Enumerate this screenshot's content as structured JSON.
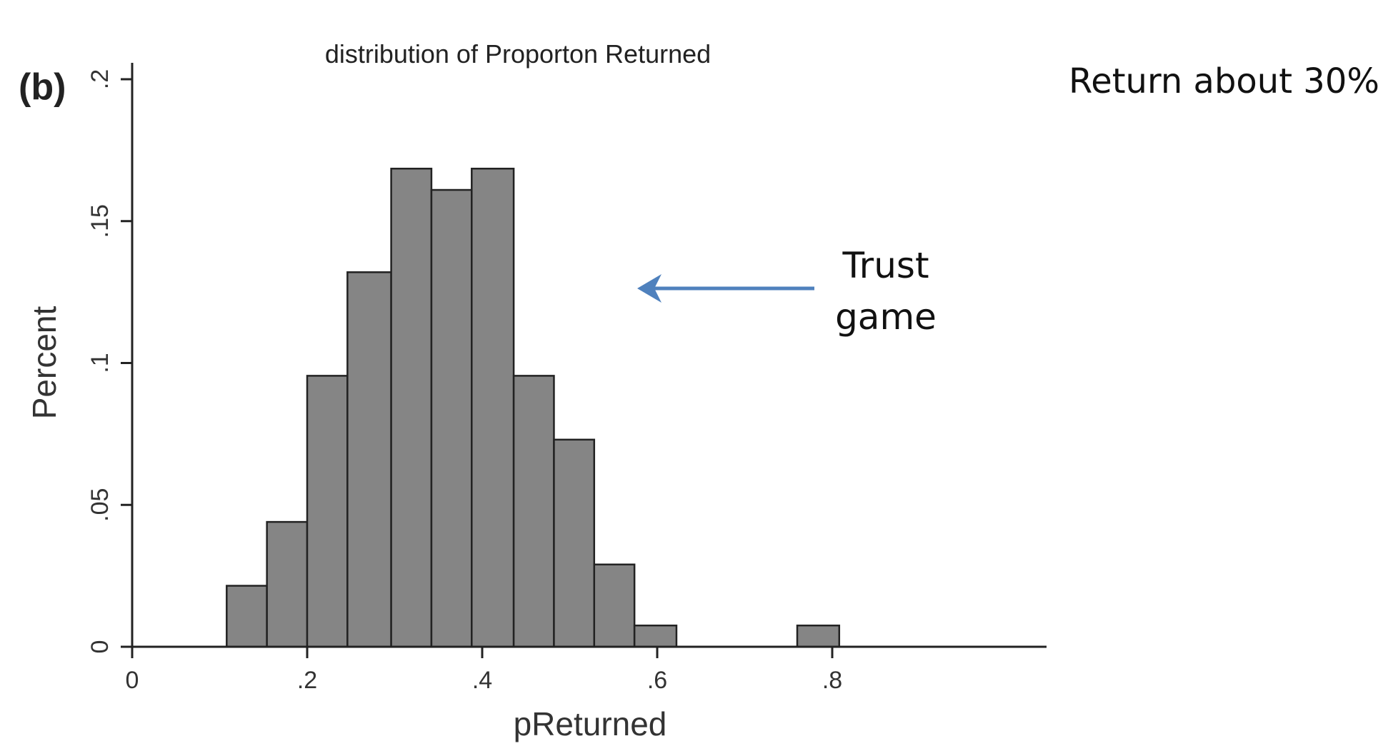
{
  "panel_label": "(b)",
  "side_note": "Return about 30%",
  "annotation": {
    "line1": "Trust",
    "line2": "game",
    "arrow_color": "#4F81BD"
  },
  "chart_data": {
    "type": "bar",
    "title": "distribution of Proporton Returned",
    "xlabel": "pReturned",
    "ylabel": "Percent",
    "xlim": [
      -0.02,
      0.82
    ],
    "ylim": [
      0,
      0.2
    ],
    "xticks": [
      0,
      0.2,
      0.4,
      0.6,
      0.8
    ],
    "xtick_labels": [
      "0",
      ".2",
      ".4",
      ".6",
      ".8"
    ],
    "yticks": [
      0,
      0.05,
      0.1,
      0.15,
      0.2
    ],
    "ytick_labels": [
      "0",
      ".05",
      ".1",
      ".15",
      ".2"
    ],
    "bar_color": "#858585",
    "bar_edge_color": "#222222",
    "bins": [
      {
        "x0": 0.108,
        "x1": 0.154,
        "value": 0.0215
      },
      {
        "x0": 0.154,
        "x1": 0.2,
        "value": 0.044
      },
      {
        "x0": 0.2,
        "x1": 0.246,
        "value": 0.0955
      },
      {
        "x0": 0.246,
        "x1": 0.296,
        "value": 0.132
      },
      {
        "x0": 0.296,
        "x1": 0.342,
        "value": 0.1685
      },
      {
        "x0": 0.342,
        "x1": 0.388,
        "value": 0.161
      },
      {
        "x0": 0.388,
        "x1": 0.436,
        "value": 0.1685
      },
      {
        "x0": 0.436,
        "x1": 0.482,
        "value": 0.0955
      },
      {
        "x0": 0.482,
        "x1": 0.528,
        "value": 0.073
      },
      {
        "x0": 0.528,
        "x1": 0.574,
        "value": 0.029
      },
      {
        "x0": 0.574,
        "x1": 0.622,
        "value": 0.0075
      },
      {
        "x0": 0.76,
        "x1": 0.808,
        "value": 0.0075
      }
    ]
  }
}
